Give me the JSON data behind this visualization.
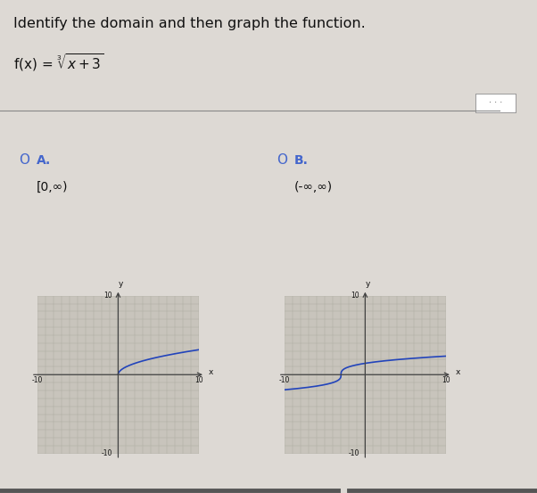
{
  "title_text": "Identify the domain and then graph the function.",
  "background_color": "#ddd9d4",
  "graph_bg_color": "#c8c4bc",
  "grid_color": "#aaa89f",
  "axis_color": "#444444",
  "curve_color": "#2244bb",
  "option_A_label": "A.",
  "option_A_domain": "[0,∞)",
  "option_B_label": "B.",
  "option_B_domain": "(-∞,∞)",
  "radio_color": "#4466cc",
  "text_color": "#111111",
  "separator_color": "#888888",
  "font_size_title": 11.5,
  "font_size_option": 10,
  "font_size_domain": 10,
  "dots_button_color": "#cccccc",
  "bottom_bar_color": "#555555",
  "xlim": [
    -10,
    10
  ],
  "ylim": [
    -10,
    10
  ]
}
